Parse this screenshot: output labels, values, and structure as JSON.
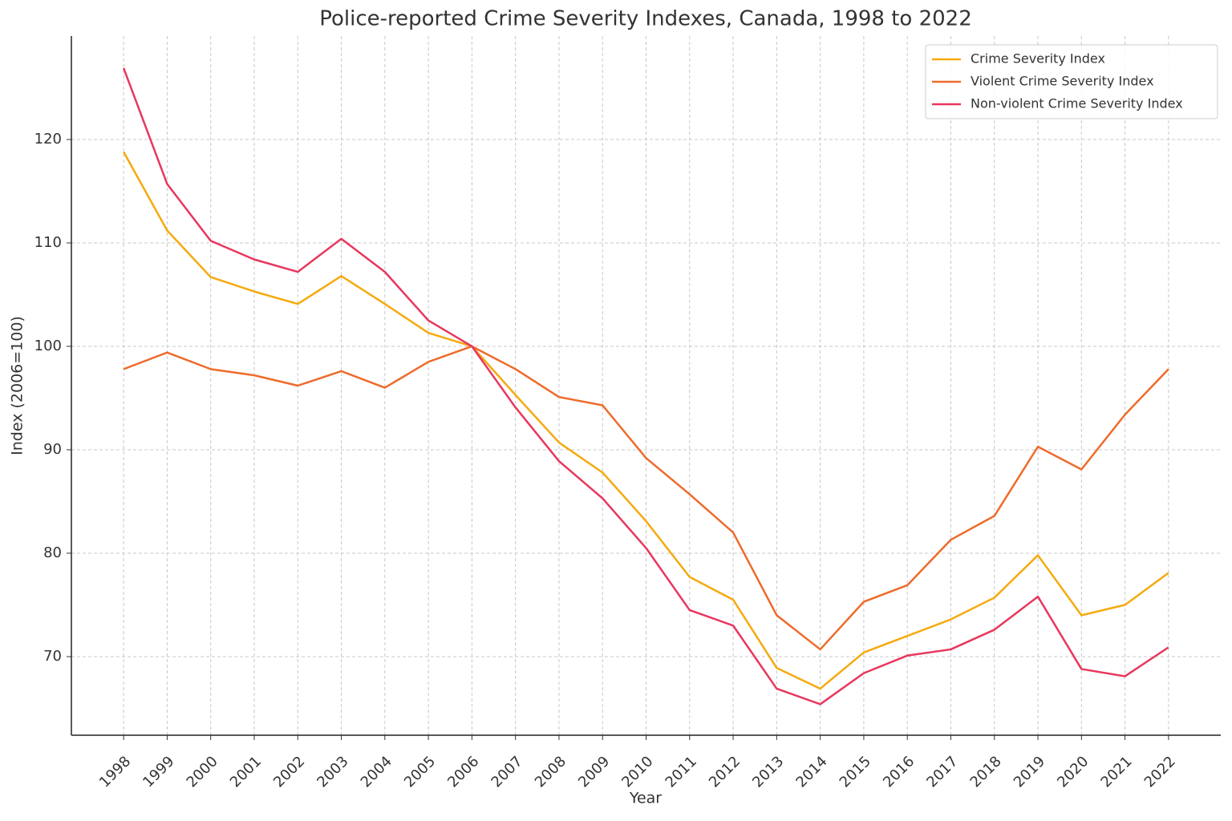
{
  "chart_data": {
    "type": "line",
    "title": "Police-reported Crime Severity Indexes, Canada, 1998 to 2022",
    "x_label": "Year",
    "y_label": "Index (2006=100)",
    "x": [
      1998,
      1999,
      2000,
      2001,
      2002,
      2003,
      2004,
      2005,
      2006,
      2007,
      2008,
      2009,
      2010,
      2011,
      2012,
      2013,
      2014,
      2015,
      2016,
      2017,
      2018,
      2019,
      2020,
      2021,
      2022
    ],
    "xlim": [
      1996.8,
      2023.2
    ],
    "xticks": [
      1998,
      1999,
      2000,
      2001,
      2002,
      2003,
      2004,
      2005,
      2006,
      2007,
      2008,
      2009,
      2010,
      2011,
      2012,
      2013,
      2014,
      2015,
      2016,
      2017,
      2018,
      2019,
      2020,
      2021,
      2022
    ],
    "ylim": [
      62.4,
      130
    ],
    "yticks": [
      70,
      80,
      90,
      100,
      110,
      120
    ],
    "grid": true,
    "legend": "upper right",
    "series": [
      {
        "name": "Crime Severity Index",
        "color": "#f5aa0f",
        "values": [
          118.8,
          111.2,
          106.7,
          105.3,
          104.1,
          106.8,
          104.1,
          101.3,
          100,
          95.3,
          90.7,
          87.8,
          83.1,
          77.7,
          75.5,
          68.9,
          66.9,
          70.4,
          72.0,
          73.6,
          75.7,
          79.8,
          74.0,
          75.0,
          78.1
        ]
      },
      {
        "name": "Violent Crime Severity Index",
        "color": "#ee6b2b",
        "values": [
          97.8,
          99.4,
          97.8,
          97.2,
          96.2,
          97.6,
          96.0,
          98.5,
          100,
          97.8,
          95.1,
          94.3,
          89.2,
          85.7,
          82.0,
          74.0,
          70.7,
          75.3,
          76.9,
          81.3,
          83.6,
          90.3,
          88.1,
          93.4,
          97.8
        ]
      },
      {
        "name": "Non-violent Crime Severity Index",
        "color": "#e8375e",
        "values": [
          126.9,
          115.7,
          110.2,
          108.4,
          107.2,
          110.4,
          107.2,
          102.5,
          100,
          94.1,
          88.9,
          85.3,
          80.5,
          74.5,
          73.0,
          66.9,
          65.4,
          68.4,
          70.1,
          70.7,
          72.6,
          75.8,
          68.8,
          68.1,
          70.9
        ]
      }
    ]
  }
}
